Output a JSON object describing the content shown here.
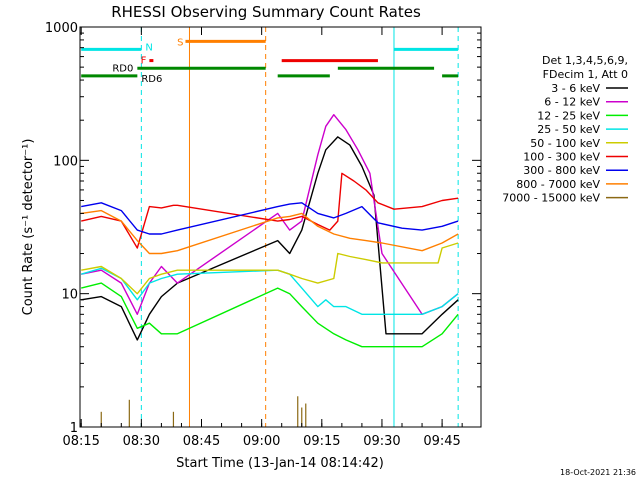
{
  "chart_data": {
    "type": "line",
    "title": "RHESSI Observing Summary Count Rates",
    "xlabel": "Start Time (13-Jan-14 08:14:42)",
    "ylabel": "Count Rate (s⁻¹ detector⁻¹)",
    "y_scale": "log",
    "ylim": [
      1,
      1000
    ],
    "xlim": [
      "08:15",
      "09:52"
    ],
    "x_ticks": [
      "08:15",
      "08:30",
      "08:45",
      "09:00",
      "09:15",
      "09:30",
      "09:45"
    ],
    "y_ticks": [
      "1",
      "10",
      "100",
      "1000"
    ],
    "legend": {
      "placement": "right",
      "header": [
        "Det 1,3,4,5,6,9,",
        "FDecim 1, Att 0"
      ]
    },
    "series": [
      {
        "name": "3 - 6 keV",
        "color": "#000000",
        "x": [
          "08:15",
          "08:20",
          "08:25",
          "08:29",
          "08:32",
          "08:35",
          "08:39",
          "09:04",
          "09:07",
          "09:10",
          "09:14",
          "09:16",
          "09:19",
          "09:22",
          "09:25",
          "09:28",
          "09:31",
          "09:40",
          "09:45",
          "09:49"
        ],
        "y": [
          9,
          9.5,
          8,
          4.5,
          7,
          9.5,
          12,
          25,
          20,
          30,
          80,
          120,
          150,
          130,
          90,
          55,
          5,
          5,
          7,
          9
        ]
      },
      {
        "name": "6 - 12 keV",
        "color": "#cc00cc",
        "x": [
          "08:15",
          "08:20",
          "08:25",
          "08:29",
          "08:32",
          "08:35",
          "08:39",
          "09:04",
          "09:07",
          "09:10",
          "09:14",
          "09:16",
          "09:18",
          "09:21",
          "09:24",
          "09:27",
          "09:30",
          "09:40",
          "09:45",
          "09:49"
        ],
        "y": [
          14,
          15,
          12,
          7,
          12,
          16,
          12,
          40,
          30,
          35,
          110,
          180,
          220,
          170,
          120,
          80,
          20,
          7,
          8,
          10
        ]
      },
      {
        "name": "12 - 25 keV",
        "color": "#00ee00",
        "x": [
          "08:15",
          "08:20",
          "08:25",
          "08:29",
          "08:32",
          "08:35",
          "08:39",
          "09:04",
          "09:07",
          "09:10",
          "09:14",
          "09:18",
          "09:21",
          "09:25",
          "09:30",
          "09:40",
          "09:45",
          "09:49"
        ],
        "y": [
          11,
          12,
          9.5,
          5.5,
          6,
          5,
          5,
          11,
          10,
          8,
          6,
          5,
          4.5,
          4,
          4,
          4,
          5,
          7
        ]
      },
      {
        "name": "25 - 50 keV",
        "color": "#00e5e5",
        "x": [
          "08:15",
          "08:20",
          "08:25",
          "08:29",
          "08:32",
          "08:35",
          "08:39",
          "09:04",
          "09:07",
          "09:10",
          "09:14",
          "09:16",
          "09:18",
          "09:21",
          "09:25",
          "09:30",
          "09:40",
          "09:45",
          "09:49"
        ],
        "y": [
          14,
          15.5,
          13,
          9,
          12,
          13,
          14,
          15,
          14,
          11,
          8,
          9,
          8,
          8,
          7,
          7,
          7,
          8,
          10
        ]
      },
      {
        "name": "50 - 100 keV",
        "color": "#cccc00",
        "x": [
          "08:15",
          "08:20",
          "08:25",
          "08:29",
          "08:32",
          "08:35",
          "08:39",
          "09:04",
          "09:07",
          "09:10",
          "09:14",
          "09:18",
          "09:19",
          "09:22",
          "09:26",
          "09:30",
          "09:40",
          "09:44",
          "09:45",
          "09:49"
        ],
        "y": [
          15,
          16,
          13,
          10,
          13,
          14,
          15,
          15,
          14,
          13,
          12,
          13,
          20,
          19,
          18,
          17,
          17,
          17,
          22,
          24
        ]
      },
      {
        "name": "100 - 300 keV",
        "color": "#ee0000",
        "x": [
          "08:15",
          "08:20",
          "08:25",
          "08:29",
          "08:32",
          "08:35",
          "08:38",
          "08:39",
          "09:04",
          "09:07",
          "09:10",
          "09:14",
          "09:17",
          "09:19",
          "09:20",
          "09:23",
          "09:26",
          "09:29",
          "09:33",
          "09:40",
          "09:45",
          "09:49"
        ],
        "y": [
          35,
          38,
          35,
          22,
          45,
          44,
          46,
          46,
          35,
          36,
          38,
          33,
          30,
          35,
          80,
          70,
          60,
          48,
          43,
          45,
          50,
          52
        ]
      },
      {
        "name": "300 - 800 keV",
        "color": "#0000ee",
        "x": [
          "08:15",
          "08:20",
          "08:25",
          "08:29",
          "08:32",
          "08:35",
          "08:39",
          "09:04",
          "09:07",
          "09:10",
          "09:14",
          "09:18",
          "09:21",
          "09:25",
          "09:29",
          "09:35",
          "09:40",
          "09:45",
          "09:49"
        ],
        "y": [
          45,
          48,
          42,
          30,
          28,
          28,
          30,
          45,
          47,
          48,
          40,
          37,
          40,
          45,
          34,
          31,
          30,
          32,
          35
        ]
      },
      {
        "name": "800 - 7000 keV",
        "color": "#ff7f00",
        "x": [
          "08:15",
          "08:20",
          "08:25",
          "08:29",
          "08:32",
          "08:35",
          "08:39",
          "09:04",
          "09:07",
          "09:10",
          "09:14",
          "09:18",
          "09:22",
          "09:26",
          "09:30",
          "09:40",
          "09:45",
          "09:49"
        ],
        "y": [
          40,
          42,
          35,
          25,
          20,
          20,
          21,
          37,
          38,
          40,
          32,
          28,
          26,
          25,
          24,
          21,
          24,
          28
        ]
      },
      {
        "name": "7000 - 15000 keV",
        "color": "#8b6914",
        "x": [
          "08:20",
          "08:27",
          "08:38",
          "09:09",
          "09:10",
          "09:11"
        ],
        "y": [
          1.3,
          1.6,
          1.3,
          1.7,
          1.4,
          1.5
        ]
      }
    ],
    "annotations": [
      {
        "label": "N",
        "color": "#00e5e5",
        "segments": [
          [
            "08:15",
            "08:30"
          ],
          [
            "09:33",
            "09:49"
          ]
        ],
        "level": 680
      },
      {
        "label": "F",
        "color": "#ee0000",
        "segments": [
          [
            "08:32",
            "08:33"
          ]
        ],
        "level": 560
      },
      {
        "label": "S",
        "color": "#ff7f00",
        "segments": [
          [
            "08:41",
            "09:01"
          ]
        ],
        "level": 780
      },
      {
        "label": "",
        "color": "#ee0000",
        "segments": [
          [
            "09:05",
            "09:29"
          ]
        ],
        "level": 560
      },
      {
        "label": "RD0",
        "color": "#008800",
        "segments": [
          [
            "08:29",
            "09:01"
          ],
          [
            "09:19",
            "09:43"
          ]
        ],
        "level": 490
      },
      {
        "label": "RD6",
        "color": "#008800",
        "segments": [
          [
            "08:15",
            "08:29"
          ],
          [
            "09:04",
            "09:17"
          ],
          [
            "09:45",
            "09:49"
          ]
        ],
        "level": 430
      }
    ],
    "vertical_markers": [
      {
        "x": "08:30",
        "style": "dashed",
        "color": "#00e5e5"
      },
      {
        "x": "08:42",
        "style": "solid",
        "color": "#ff7f00"
      },
      {
        "x": "09:01",
        "style": "dashed",
        "color": "#ff7f00"
      },
      {
        "x": "09:33",
        "style": "solid",
        "color": "#00e5e5"
      },
      {
        "x": "09:49",
        "style": "dashed",
        "color": "#00e5e5"
      }
    ],
    "footer_date": "18-Oct-2021 21:36"
  }
}
